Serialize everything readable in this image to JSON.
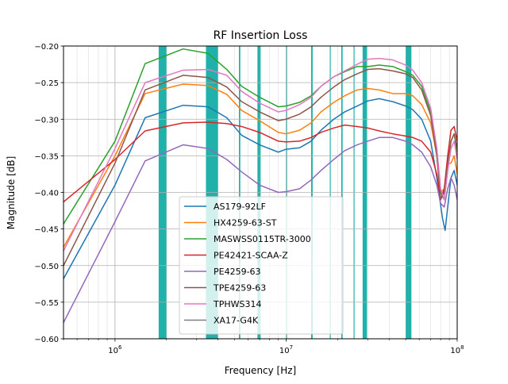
{
  "chart_data": {
    "type": "line",
    "title": "RF Insertion Loss",
    "xlabel": "Frequency [Hz]",
    "ylabel": "Magnitude [dB]",
    "xscale": "log",
    "xlim": [
      500000,
      100000000
    ],
    "ylim": [
      -0.6,
      -0.2
    ],
    "x_ticks": [
      {
        "value": 1000000,
        "base": "10",
        "exp": "6"
      },
      {
        "value": 10000000,
        "base": "10",
        "exp": "7"
      },
      {
        "value": 100000000,
        "base": "10",
        "exp": "8"
      }
    ],
    "y_ticks": [
      {
        "value": -0.6,
        "label": "−0.60"
      },
      {
        "value": -0.55,
        "label": "−0.55"
      },
      {
        "value": -0.5,
        "label": "−0.50"
      },
      {
        "value": -0.45,
        "label": "−0.45"
      },
      {
        "value": -0.4,
        "label": "−0.40"
      },
      {
        "value": -0.35,
        "label": "−0.35"
      },
      {
        "value": -0.3,
        "label": "−0.30"
      },
      {
        "value": -0.25,
        "label": "−0.25"
      },
      {
        "value": -0.2,
        "label": "−0.20"
      }
    ],
    "grid": true,
    "legend_position": "lower center",
    "band_color": "#20b2aa",
    "bands": [
      [
        1800000,
        2000000
      ],
      [
        3400000,
        4000000
      ],
      [
        5300000,
        5400000
      ],
      [
        6800000,
        7100000
      ],
      [
        10000000,
        10100000
      ],
      [
        14000000,
        14300000
      ],
      [
        18000000,
        18200000
      ],
      [
        21000000,
        21400000
      ],
      [
        24800000,
        25000000
      ],
      [
        28000000,
        29700000
      ],
      [
        50000000,
        54000000
      ]
    ],
    "series": [
      {
        "name": "AS179-92LF",
        "color": "#1f77b4",
        "points": [
          [
            500000,
            -0.518
          ],
          [
            1000000,
            -0.39
          ],
          [
            1500000,
            -0.298
          ],
          [
            2500000,
            -0.281
          ],
          [
            3500000,
            -0.283
          ],
          [
            4500000,
            -0.298
          ],
          [
            5500000,
            -0.322
          ],
          [
            7000000,
            -0.335
          ],
          [
            9000000,
            -0.345
          ],
          [
            10000000,
            -0.341
          ],
          [
            12000000,
            -0.339
          ],
          [
            14000000,
            -0.33
          ],
          [
            16000000,
            -0.315
          ],
          [
            19000000,
            -0.3
          ],
          [
            22000000,
            -0.29
          ],
          [
            26000000,
            -0.282
          ],
          [
            30000000,
            -0.275
          ],
          [
            35000000,
            -0.272
          ],
          [
            42000000,
            -0.276
          ],
          [
            50000000,
            -0.282
          ],
          [
            55000000,
            -0.287
          ],
          [
            62000000,
            -0.3
          ],
          [
            70000000,
            -0.33
          ],
          [
            76000000,
            -0.38
          ],
          [
            82000000,
            -0.435
          ],
          [
            85000000,
            -0.452
          ],
          [
            88000000,
            -0.42
          ],
          [
            92000000,
            -0.38
          ],
          [
            96000000,
            -0.37
          ],
          [
            100000000,
            -0.39
          ]
        ]
      },
      {
        "name": "HX4259-63-ST",
        "color": "#ff7f0e",
        "points": [
          [
            500000,
            -0.475
          ],
          [
            1000000,
            -0.35
          ],
          [
            1500000,
            -0.265
          ],
          [
            2500000,
            -0.252
          ],
          [
            3500000,
            -0.254
          ],
          [
            4500000,
            -0.266
          ],
          [
            5500000,
            -0.288
          ],
          [
            7000000,
            -0.302
          ],
          [
            9000000,
            -0.318
          ],
          [
            10000000,
            -0.32
          ],
          [
            12000000,
            -0.315
          ],
          [
            14000000,
            -0.305
          ],
          [
            16000000,
            -0.29
          ],
          [
            19000000,
            -0.277
          ],
          [
            22000000,
            -0.268
          ],
          [
            26000000,
            -0.26
          ],
          [
            30000000,
            -0.258
          ],
          [
            35000000,
            -0.26
          ],
          [
            42000000,
            -0.265
          ],
          [
            50000000,
            -0.265
          ],
          [
            55000000,
            -0.268
          ],
          [
            62000000,
            -0.28
          ],
          [
            70000000,
            -0.305
          ],
          [
            76000000,
            -0.35
          ],
          [
            80000000,
            -0.4
          ],
          [
            84000000,
            -0.395
          ],
          [
            88000000,
            -0.36
          ],
          [
            92000000,
            -0.36
          ],
          [
            96000000,
            -0.35
          ],
          [
            100000000,
            -0.375
          ]
        ]
      },
      {
        "name": "MASWSS0115TR-3000",
        "color": "#2ca02c",
        "points": [
          [
            500000,
            -0.443
          ],
          [
            1000000,
            -0.33
          ],
          [
            1500000,
            -0.224
          ],
          [
            2500000,
            -0.204
          ],
          [
            3500000,
            -0.21
          ],
          [
            4500000,
            -0.232
          ],
          [
            5500000,
            -0.255
          ],
          [
            7000000,
            -0.27
          ],
          [
            9000000,
            -0.283
          ],
          [
            10000000,
            -0.282
          ],
          [
            12000000,
            -0.277
          ],
          [
            14000000,
            -0.268
          ],
          [
            16000000,
            -0.255
          ],
          [
            19000000,
            -0.242
          ],
          [
            22000000,
            -0.235
          ],
          [
            26000000,
            -0.228
          ],
          [
            30000000,
            -0.228
          ],
          [
            35000000,
            -0.226
          ],
          [
            42000000,
            -0.228
          ],
          [
            50000000,
            -0.235
          ],
          [
            55000000,
            -0.24
          ],
          [
            62000000,
            -0.255
          ],
          [
            70000000,
            -0.29
          ],
          [
            76000000,
            -0.34
          ],
          [
            80000000,
            -0.4
          ],
          [
            84000000,
            -0.41
          ],
          [
            88000000,
            -0.37
          ],
          [
            92000000,
            -0.33
          ],
          [
            96000000,
            -0.32
          ],
          [
            100000000,
            -0.345
          ]
        ]
      },
      {
        "name": "PE42421-SCAA-Z",
        "color": "#d62728",
        "points": [
          [
            500000,
            -0.413
          ],
          [
            1000000,
            -0.355
          ],
          [
            1500000,
            -0.316
          ],
          [
            2500000,
            -0.305
          ],
          [
            3500000,
            -0.304
          ],
          [
            4500000,
            -0.306
          ],
          [
            5500000,
            -0.31
          ],
          [
            7000000,
            -0.318
          ],
          [
            9000000,
            -0.33
          ],
          [
            10000000,
            -0.331
          ],
          [
            12000000,
            -0.33
          ],
          [
            14000000,
            -0.325
          ],
          [
            16000000,
            -0.318
          ],
          [
            19000000,
            -0.312
          ],
          [
            22000000,
            -0.308
          ],
          [
            26000000,
            -0.31
          ],
          [
            30000000,
            -0.312
          ],
          [
            35000000,
            -0.316
          ],
          [
            42000000,
            -0.32
          ],
          [
            50000000,
            -0.323
          ],
          [
            55000000,
            -0.325
          ],
          [
            62000000,
            -0.33
          ],
          [
            70000000,
            -0.345
          ],
          [
            76000000,
            -0.375
          ],
          [
            80000000,
            -0.41
          ],
          [
            84000000,
            -0.395
          ],
          [
            88000000,
            -0.35
          ],
          [
            92000000,
            -0.315
          ],
          [
            96000000,
            -0.31
          ],
          [
            100000000,
            -0.33
          ]
        ]
      },
      {
        "name": "PE4259-63",
        "color": "#9467bd",
        "points": [
          [
            500000,
            -0.578
          ],
          [
            1000000,
            -0.44
          ],
          [
            1500000,
            -0.357
          ],
          [
            2500000,
            -0.335
          ],
          [
            3500000,
            -0.34
          ],
          [
            4500000,
            -0.355
          ],
          [
            5500000,
            -0.372
          ],
          [
            7000000,
            -0.39
          ],
          [
            9000000,
            -0.4
          ],
          [
            10000000,
            -0.399
          ],
          [
            12000000,
            -0.395
          ],
          [
            14000000,
            -0.383
          ],
          [
            16000000,
            -0.37
          ],
          [
            19000000,
            -0.355
          ],
          [
            22000000,
            -0.343
          ],
          [
            26000000,
            -0.335
          ],
          [
            30000000,
            -0.33
          ],
          [
            35000000,
            -0.325
          ],
          [
            42000000,
            -0.325
          ],
          [
            50000000,
            -0.33
          ],
          [
            55000000,
            -0.335
          ],
          [
            62000000,
            -0.345
          ],
          [
            70000000,
            -0.365
          ],
          [
            76000000,
            -0.39
          ],
          [
            80000000,
            -0.415
          ],
          [
            84000000,
            -0.42
          ],
          [
            88000000,
            -0.395
          ],
          [
            92000000,
            -0.38
          ],
          [
            96000000,
            -0.39
          ],
          [
            100000000,
            -0.41
          ]
        ]
      },
      {
        "name": "TPE4259-63",
        "color": "#8c564b",
        "points": [
          [
            500000,
            -0.5
          ],
          [
            1000000,
            -0.36
          ],
          [
            1500000,
            -0.26
          ],
          [
            2500000,
            -0.24
          ],
          [
            3500000,
            -0.243
          ],
          [
            4500000,
            -0.256
          ],
          [
            5500000,
            -0.276
          ],
          [
            7000000,
            -0.29
          ],
          [
            9000000,
            -0.302
          ],
          [
            10000000,
            -0.3
          ],
          [
            12000000,
            -0.293
          ],
          [
            14000000,
            -0.283
          ],
          [
            16000000,
            -0.27
          ],
          [
            19000000,
            -0.256
          ],
          [
            22000000,
            -0.246
          ],
          [
            26000000,
            -0.238
          ],
          [
            30000000,
            -0.232
          ],
          [
            35000000,
            -0.231
          ],
          [
            42000000,
            -0.234
          ],
          [
            50000000,
            -0.238
          ],
          [
            55000000,
            -0.243
          ],
          [
            62000000,
            -0.26
          ],
          [
            70000000,
            -0.295
          ],
          [
            76000000,
            -0.35
          ],
          [
            80000000,
            -0.41
          ],
          [
            84000000,
            -0.4
          ],
          [
            88000000,
            -0.36
          ],
          [
            92000000,
            -0.33
          ],
          [
            96000000,
            -0.32
          ],
          [
            100000000,
            -0.34
          ]
        ]
      },
      {
        "name": "TPHWS314",
        "color": "#e377c2",
        "points": [
          [
            500000,
            -0.48
          ],
          [
            1000000,
            -0.34
          ],
          [
            1500000,
            -0.25
          ],
          [
            2500000,
            -0.233
          ],
          [
            3500000,
            -0.232
          ],
          [
            4500000,
            -0.24
          ],
          [
            5500000,
            -0.262
          ],
          [
            7000000,
            -0.278
          ],
          [
            9000000,
            -0.29
          ],
          [
            10000000,
            -0.288
          ],
          [
            12000000,
            -0.28
          ],
          [
            14000000,
            -0.27
          ],
          [
            16000000,
            -0.255
          ],
          [
            19000000,
            -0.242
          ],
          [
            22000000,
            -0.234
          ],
          [
            26000000,
            -0.225
          ],
          [
            30000000,
            -0.218
          ],
          [
            35000000,
            -0.217
          ],
          [
            42000000,
            -0.219
          ],
          [
            50000000,
            -0.226
          ],
          [
            55000000,
            -0.233
          ],
          [
            62000000,
            -0.25
          ],
          [
            70000000,
            -0.285
          ],
          [
            76000000,
            -0.34
          ],
          [
            80000000,
            -0.395
          ],
          [
            84000000,
            -0.41
          ],
          [
            88000000,
            -0.37
          ],
          [
            92000000,
            -0.34
          ],
          [
            96000000,
            -0.33
          ],
          [
            100000000,
            -0.355
          ]
        ]
      },
      {
        "name": "XA17-G4K",
        "color": "#7f7f7f",
        "points": []
      }
    ]
  }
}
